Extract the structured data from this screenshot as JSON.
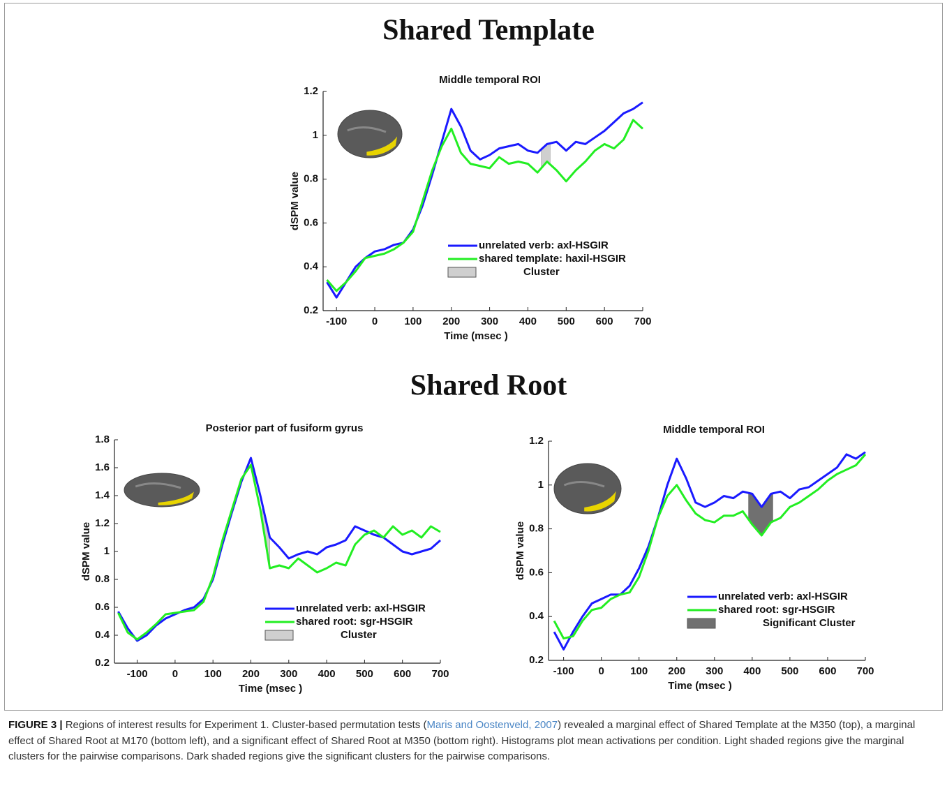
{
  "headings": [
    "Shared Template",
    "Shared Root"
  ],
  "chart_data": [
    {
      "type": "line",
      "title": "Middle temporal ROI",
      "xlabel": "Time (msec )",
      "ylabel": "dSPM value",
      "xlim": [
        -135,
        700
      ],
      "ylim": [
        0.2,
        1.2
      ],
      "xticks": [
        -100,
        0,
        100,
        200,
        300,
        400,
        500,
        600,
        700
      ],
      "yticks": [
        0.2,
        0.4,
        0.6,
        0.8,
        1,
        1.2
      ],
      "x": [
        -125,
        -100,
        -75,
        -50,
        -25,
        0,
        25,
        50,
        75,
        100,
        125,
        150,
        175,
        200,
        225,
        250,
        275,
        300,
        325,
        350,
        375,
        400,
        425,
        450,
        475,
        500,
        525,
        550,
        575,
        600,
        625,
        650,
        675,
        700
      ],
      "series": [
        {
          "name": "unrelated verb: axl-HSGIR",
          "color": "#1a1aff",
          "values": [
            0.33,
            0.26,
            0.33,
            0.4,
            0.44,
            0.47,
            0.48,
            0.5,
            0.51,
            0.57,
            0.68,
            0.82,
            0.97,
            1.12,
            1.04,
            0.93,
            0.89,
            0.91,
            0.94,
            0.95,
            0.96,
            0.93,
            0.92,
            0.96,
            0.97,
            0.93,
            0.97,
            0.96,
            0.99,
            1.02,
            1.06,
            1.1,
            1.12,
            1.15
          ]
        },
        {
          "name": "shared template: haxil-HSGIR",
          "color": "#22ee22",
          "values": [
            0.34,
            0.29,
            0.33,
            0.38,
            0.44,
            0.45,
            0.46,
            0.48,
            0.51,
            0.56,
            0.7,
            0.84,
            0.95,
            1.03,
            0.92,
            0.87,
            0.86,
            0.85,
            0.9,
            0.87,
            0.88,
            0.87,
            0.83,
            0.88,
            0.84,
            0.79,
            0.84,
            0.88,
            0.93,
            0.96,
            0.94,
            0.98,
            1.07,
            1.03
          ]
        }
      ],
      "cluster": {
        "name": "Cluster",
        "color": "#cfcfcf",
        "range": [
          435,
          458
        ]
      },
      "legend": "lower right"
    },
    {
      "type": "line",
      "title": "Posterior part of fusiform gyrus",
      "xlabel": "Time (msec )",
      "ylabel": "dSPM value",
      "xlim": [
        -160,
        700
      ],
      "ylim": [
        0.2,
        1.8
      ],
      "xticks": [
        -100,
        0,
        100,
        200,
        300,
        400,
        500,
        600,
        700
      ],
      "yticks": [
        0.2,
        0.4,
        0.6,
        0.8,
        1,
        1.2,
        1.4,
        1.6,
        1.8
      ],
      "x": [
        -150,
        -125,
        -100,
        -75,
        -50,
        -25,
        0,
        25,
        50,
        75,
        100,
        125,
        150,
        175,
        200,
        225,
        250,
        275,
        300,
        325,
        350,
        375,
        400,
        425,
        450,
        475,
        500,
        525,
        550,
        575,
        600,
        625,
        650,
        675,
        700
      ],
      "series": [
        {
          "name": "unrelated verb: axl-HSGIR",
          "color": "#1a1aff",
          "values": [
            0.57,
            0.45,
            0.36,
            0.4,
            0.47,
            0.52,
            0.55,
            0.58,
            0.6,
            0.66,
            0.8,
            1.05,
            1.28,
            1.5,
            1.67,
            1.4,
            1.1,
            1.03,
            0.95,
            0.98,
            1.0,
            0.98,
            1.03,
            1.05,
            1.08,
            1.18,
            1.15,
            1.12,
            1.1,
            1.05,
            1.0,
            0.98,
            1.0,
            1.02,
            1.08
          ]
        },
        {
          "name": "shared root: sgr-HSGIR",
          "color": "#22ee22",
          "values": [
            0.56,
            0.42,
            0.37,
            0.42,
            0.48,
            0.55,
            0.56,
            0.57,
            0.58,
            0.64,
            0.82,
            1.08,
            1.3,
            1.52,
            1.62,
            1.3,
            0.88,
            0.9,
            0.88,
            0.95,
            0.9,
            0.85,
            0.88,
            0.92,
            0.9,
            1.05,
            1.12,
            1.15,
            1.1,
            1.18,
            1.12,
            1.15,
            1.1,
            1.18,
            1.14
          ]
        }
      ],
      "cluster": {
        "name": "Cluster",
        "color": "#cfcfcf",
        "range": [
          230,
          250
        ]
      },
      "legend": "lower right"
    },
    {
      "type": "line",
      "title": "Middle temporal ROI",
      "xlabel": "Time (msec )",
      "ylabel": "dSPM value",
      "xlim": [
        -140,
        700
      ],
      "ylim": [
        0.2,
        1.2
      ],
      "xticks": [
        -100,
        0,
        100,
        200,
        300,
        400,
        500,
        600,
        700
      ],
      "yticks": [
        0.2,
        0.4,
        0.6,
        0.8,
        1,
        1.2
      ],
      "x": [
        -125,
        -100,
        -75,
        -50,
        -25,
        0,
        25,
        50,
        75,
        100,
        125,
        150,
        175,
        200,
        225,
        250,
        275,
        300,
        325,
        350,
        375,
        400,
        425,
        450,
        475,
        500,
        525,
        550,
        575,
        600,
        625,
        650,
        675,
        700
      ],
      "series": [
        {
          "name": "unrelated verb: axl-HSGIR",
          "color": "#1a1aff",
          "values": [
            0.33,
            0.25,
            0.33,
            0.4,
            0.46,
            0.48,
            0.5,
            0.5,
            0.54,
            0.62,
            0.72,
            0.85,
            1.0,
            1.12,
            1.03,
            0.92,
            0.9,
            0.92,
            0.95,
            0.94,
            0.97,
            0.96,
            0.9,
            0.96,
            0.97,
            0.94,
            0.98,
            0.99,
            1.02,
            1.05,
            1.08,
            1.14,
            1.12,
            1.15
          ]
        },
        {
          "name": "shared root: sgr-HSGIR",
          "color": "#22ee22",
          "values": [
            0.38,
            0.3,
            0.31,
            0.38,
            0.43,
            0.44,
            0.48,
            0.5,
            0.51,
            0.58,
            0.7,
            0.85,
            0.95,
            1.0,
            0.93,
            0.87,
            0.84,
            0.83,
            0.86,
            0.86,
            0.88,
            0.82,
            0.77,
            0.83,
            0.85,
            0.9,
            0.92,
            0.95,
            0.98,
            1.02,
            1.05,
            1.07,
            1.09,
            1.14
          ]
        }
      ],
      "cluster": {
        "name": "Significant Cluster",
        "color": "#707070",
        "range": [
          390,
          455
        ]
      },
      "legend": "lower right"
    }
  ],
  "caption": {
    "label": "FIGURE 3 |",
    "text_before": " Regions of interest results for Experiment 1. Cluster-based permutation tests (",
    "citation": "Maris and Oostenveld, 2007",
    "text_after": ") revealed a marginal effect of Shared Template at the M350 (top), a marginal effect of Shared Root at M170 (bottom left), and a significant effect of Shared Root at M350 (bottom right). Histograms plot mean activations per condition. Light shaded regions give the marginal clusters for the pairwise comparisons. Dark shaded regions give the significant clusters for the pairwise comparisons."
  }
}
